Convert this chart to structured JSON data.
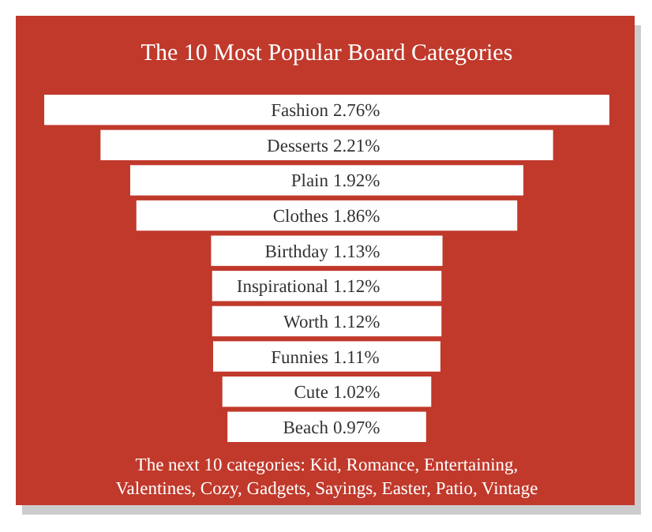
{
  "chart_data": {
    "type": "other",
    "title": "The 10 Most Popular Board Categories",
    "categories": [
      "Fashion",
      "Desserts",
      "Plain",
      "Clothes",
      "Birthday",
      "Inspirational",
      "Worth",
      "Funnies",
      "Cute",
      "Beach"
    ],
    "values": [
      2.76,
      2.21,
      1.92,
      1.86,
      1.13,
      1.12,
      1.12,
      1.11,
      1.02,
      0.97
    ],
    "value_labels": [
      "2.76%",
      "2.21%",
      "1.92%",
      "1.86%",
      "1.13%",
      "1.12%",
      "1.12%",
      "1.11%",
      "1.02%",
      "0.97%"
    ],
    "color": "#ffffff",
    "annotations": [
      "The next 10 categories: Kid, Romance, Entertaining, Valentines, Cozy, Gadgets, Sayings, Easter, Patio, Vintage"
    ]
  }
}
